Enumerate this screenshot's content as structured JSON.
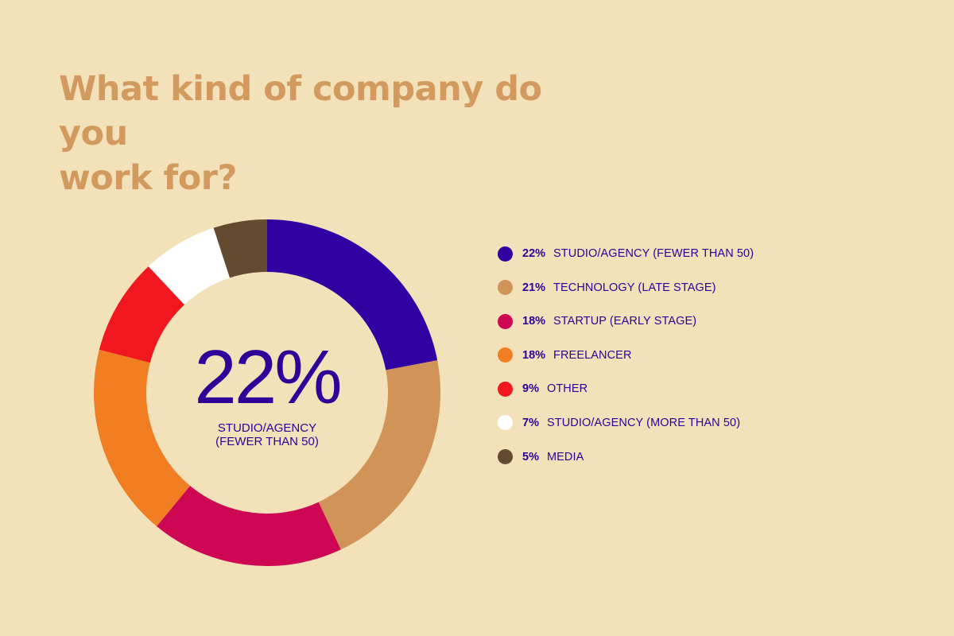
{
  "title_lines": [
    "What kind of company do you",
    "work for?"
  ],
  "colors": {
    "background": "#f3e2b9",
    "title": "#d29a5f",
    "text": "#2e0098"
  },
  "chart_data": {
    "type": "pie",
    "title": "What kind of company do you work for?",
    "center": {
      "value": "22%",
      "label_lines": [
        "STUDIO/AGENCY",
        "(FEWER THAN 50)"
      ]
    },
    "slices": [
      {
        "value": 22,
        "pct_label": "22%",
        "label": "STUDIO/AGENCY (FEWER THAN 50)",
        "color": "#3100a1"
      },
      {
        "value": 21,
        "pct_label": "21%",
        "label": "TECHNOLOGY (LATE STAGE)",
        "color": "#d09458"
      },
      {
        "value": 18,
        "pct_label": "18%",
        "label": "STARTUP (EARLY STAGE)",
        "color": "#ce0755"
      },
      {
        "value": 18,
        "pct_label": "18%",
        "label": "FREELANCER",
        "color": "#f17e22"
      },
      {
        "value": 9,
        "pct_label": "9%",
        "label": "OTHER",
        "color": "#f0171e"
      },
      {
        "value": 7,
        "pct_label": "7%",
        "label": "STUDIO/AGENCY (MORE THAN 50)",
        "color": "#ffffff"
      },
      {
        "value": 5,
        "pct_label": "5%",
        "label": "MEDIA",
        "color": "#634a30"
      }
    ],
    "legend_position": "right"
  }
}
